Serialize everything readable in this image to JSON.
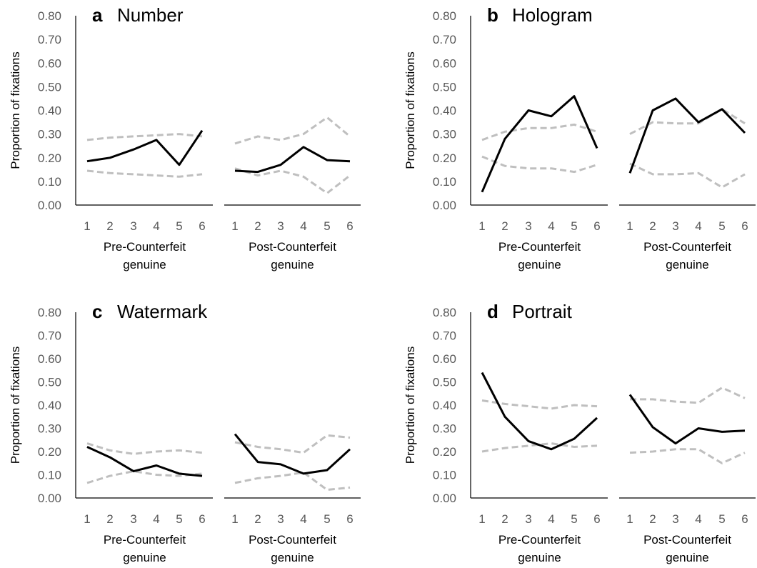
{
  "chart_data": [
    {
      "type": "line",
      "letter": "a",
      "title": "Number",
      "ylabel": "Proportion of fixations",
      "ylim": [
        0,
        0.8
      ],
      "yticks": [
        "0.00",
        "0.10",
        "0.20",
        "0.30",
        "0.40",
        "0.50",
        "0.60",
        "0.70",
        "0.80"
      ],
      "grid": false,
      "groups": [
        {
          "label": [
            "Pre-Counterfeit",
            "genuine"
          ],
          "x": [
            1,
            2,
            3,
            4,
            5,
            6
          ],
          "series": [
            {
              "style": "mean",
              "values": [
                0.185,
                0.2,
                0.235,
                0.275,
                0.17,
                0.315
              ]
            },
            {
              "style": "ci_upper",
              "values": [
                0.275,
                0.285,
                0.29,
                0.295,
                0.3,
                0.29
              ]
            },
            {
              "style": "ci_lower",
              "values": [
                0.145,
                0.135,
                0.13,
                0.125,
                0.12,
                0.13
              ]
            }
          ]
        },
        {
          "label": [
            "Post-Counterfeit",
            "genuine"
          ],
          "x": [
            1,
            2,
            3,
            4,
            5,
            6
          ],
          "series": [
            {
              "style": "mean",
              "values": [
                0.145,
                0.14,
                0.17,
                0.245,
                0.19,
                0.185
              ]
            },
            {
              "style": "ci_upper",
              "values": [
                0.26,
                0.29,
                0.275,
                0.3,
                0.37,
                0.29
              ]
            },
            {
              "style": "ci_lower",
              "values": [
                0.155,
                0.125,
                0.145,
                0.12,
                0.05,
                0.125
              ]
            }
          ]
        }
      ]
    },
    {
      "type": "line",
      "letter": "b",
      "title": "Hologram",
      "ylabel": "Proportion of fixations",
      "ylim": [
        0,
        0.8
      ],
      "yticks": [
        "0.00",
        "0.10",
        "0.20",
        "0.30",
        "0.40",
        "0.50",
        "0.60",
        "0.70",
        "0.80"
      ],
      "grid": false,
      "groups": [
        {
          "label": [
            "Pre-Counterfeit",
            "genuine"
          ],
          "x": [
            1,
            2,
            3,
            4,
            5,
            6
          ],
          "series": [
            {
              "style": "mean",
              "values": [
                0.055,
                0.28,
                0.4,
                0.375,
                0.46,
                0.24
              ]
            },
            {
              "style": "ci_upper",
              "values": [
                0.275,
                0.31,
                0.325,
                0.325,
                0.34,
                0.31
              ]
            },
            {
              "style": "ci_lower",
              "values": [
                0.205,
                0.165,
                0.155,
                0.155,
                0.14,
                0.17
              ]
            }
          ]
        },
        {
          "label": [
            "Post-Counterfeit",
            "genuine"
          ],
          "x": [
            1,
            2,
            3,
            4,
            5,
            6
          ],
          "series": [
            {
              "style": "mean",
              "values": [
                0.135,
                0.4,
                0.45,
                0.35,
                0.405,
                0.305
              ]
            },
            {
              "style": "ci_upper",
              "values": [
                0.3,
                0.35,
                0.345,
                0.345,
                0.405,
                0.345
              ]
            },
            {
              "style": "ci_lower",
              "values": [
                0.175,
                0.13,
                0.13,
                0.135,
                0.075,
                0.13
              ]
            }
          ]
        }
      ]
    },
    {
      "type": "line",
      "letter": "c",
      "title": "Watermark",
      "ylabel": "Proportion of fixations",
      "ylim": [
        0,
        0.8
      ],
      "yticks": [
        "0.00",
        "0.10",
        "0.20",
        "0.30",
        "0.40",
        "0.50",
        "0.60",
        "0.70",
        "0.80"
      ],
      "grid": false,
      "groups": [
        {
          "label": [
            "Pre-Counterfeit",
            "genuine"
          ],
          "x": [
            1,
            2,
            3,
            4,
            5,
            6
          ],
          "series": [
            {
              "style": "mean",
              "values": [
                0.22,
                0.175,
                0.115,
                0.14,
                0.105,
                0.095
              ]
            },
            {
              "style": "ci_upper",
              "values": [
                0.235,
                0.205,
                0.19,
                0.2,
                0.205,
                0.195
              ]
            },
            {
              "style": "ci_lower",
              "values": [
                0.065,
                0.095,
                0.115,
                0.1,
                0.095,
                0.105
              ]
            }
          ]
        },
        {
          "label": [
            "Post-Counterfeit",
            "genuine"
          ],
          "x": [
            1,
            2,
            3,
            4,
            5,
            6
          ],
          "series": [
            {
              "style": "mean",
              "values": [
                0.275,
                0.155,
                0.145,
                0.105,
                0.12,
                0.21
              ]
            },
            {
              "style": "ci_upper",
              "values": [
                0.24,
                0.22,
                0.21,
                0.195,
                0.27,
                0.26
              ]
            },
            {
              "style": "ci_lower",
              "values": [
                0.065,
                0.085,
                0.095,
                0.11,
                0.035,
                0.045
              ]
            }
          ]
        }
      ]
    },
    {
      "type": "line",
      "letter": "d",
      "title": "Portrait",
      "ylabel": "Proportion of fixations",
      "ylim": [
        0,
        0.8
      ],
      "yticks": [
        "0.00",
        "0.10",
        "0.20",
        "0.30",
        "0.40",
        "0.50",
        "0.60",
        "0.70",
        "0.80"
      ],
      "grid": false,
      "groups": [
        {
          "label": [
            "Pre-Counterfeit",
            "genuine"
          ],
          "x": [
            1,
            2,
            3,
            4,
            5,
            6
          ],
          "series": [
            {
              "style": "mean",
              "values": [
                0.54,
                0.35,
                0.245,
                0.21,
                0.255,
                0.345
              ]
            },
            {
              "style": "ci_upper",
              "values": [
                0.42,
                0.405,
                0.395,
                0.385,
                0.4,
                0.395
              ]
            },
            {
              "style": "ci_lower",
              "values": [
                0.2,
                0.215,
                0.225,
                0.235,
                0.22,
                0.225
              ]
            }
          ]
        },
        {
          "label": [
            "Post-Counterfeit",
            "genuine"
          ],
          "x": [
            1,
            2,
            3,
            4,
            5,
            6
          ],
          "series": [
            {
              "style": "mean",
              "values": [
                0.445,
                0.305,
                0.235,
                0.3,
                0.285,
                0.29
              ]
            },
            {
              "style": "ci_upper",
              "values": [
                0.425,
                0.425,
                0.415,
                0.41,
                0.475,
                0.43
              ]
            },
            {
              "style": "ci_lower",
              "values": [
                0.195,
                0.2,
                0.21,
                0.21,
                0.15,
                0.195
              ]
            }
          ]
        }
      ]
    }
  ],
  "colors": {
    "mean": "#000000",
    "ci": "#bfbfbf",
    "tick_text": "#595959"
  }
}
